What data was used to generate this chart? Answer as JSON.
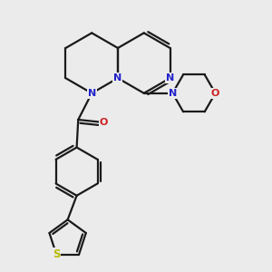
{
  "bg_color": "#ebebeb",
  "bond_color": "#1a1a1a",
  "N_color": "#2222cc",
  "O_color": "#cc2222",
  "S_color": "#b8b800",
  "line_width": 1.6,
  "figsize": [
    3.0,
    3.0
  ],
  "dpi": 100,
  "xlim": [
    -0.3,
    2.2
  ],
  "ylim": [
    -2.1,
    1.3
  ]
}
